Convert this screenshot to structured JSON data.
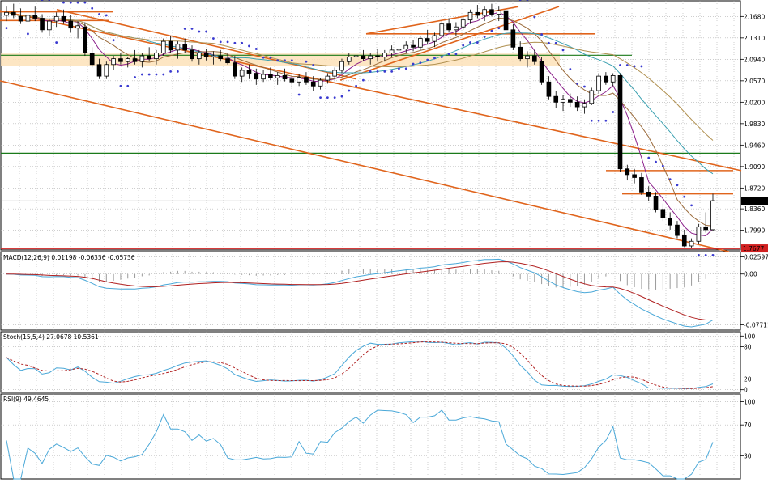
{
  "chart_data": {
    "type": "candlestick",
    "price_pane": {
      "y_ticks": [
        "2.1680",
        "2.1310",
        "2.0940",
        "2.0570",
        "2.0200",
        "1.9830",
        "1.9460",
        "1.9090",
        "1.8720",
        "1.8360",
        "1.7990"
      ],
      "y_range": [
        1.765,
        2.195
      ],
      "last_price_label": "1.8498",
      "low_price_label": "1.7677",
      "candles": [
        [
          2.17,
          2.185,
          2.16,
          2.175
        ],
        [
          2.175,
          2.19,
          2.165,
          2.17
        ],
        [
          2.168,
          2.182,
          2.155,
          2.16
        ],
        [
          2.16,
          2.175,
          2.15,
          2.17
        ],
        [
          2.17,
          2.185,
          2.16,
          2.165
        ],
        [
          2.165,
          2.172,
          2.14,
          2.145
        ],
        [
          2.145,
          2.165,
          2.135,
          2.16
        ],
        [
          2.16,
          2.175,
          2.15,
          2.168
        ],
        [
          2.168,
          2.18,
          2.155,
          2.16
        ],
        [
          2.16,
          2.17,
          2.14,
          2.148
        ],
        [
          2.148,
          2.16,
          2.13,
          2.152
        ],
        [
          2.15,
          2.158,
          2.1,
          2.105
        ],
        [
          2.105,
          2.115,
          2.08,
          2.085
        ],
        [
          2.085,
          2.095,
          2.06,
          2.065
        ],
        [
          2.065,
          2.09,
          2.06,
          2.085
        ],
        [
          2.085,
          2.1,
          2.075,
          2.095
        ],
        [
          2.095,
          2.105,
          2.085,
          2.09
        ],
        [
          2.09,
          2.098,
          2.08,
          2.095
        ],
        [
          2.095,
          2.11,
          2.085,
          2.09
        ],
        [
          2.09,
          2.105,
          2.08,
          2.1
        ],
        [
          2.1,
          2.115,
          2.09,
          2.095
        ],
        [
          2.095,
          2.11,
          2.085,
          2.105
        ],
        [
          2.105,
          2.13,
          2.1,
          2.125
        ],
        [
          2.125,
          2.135,
          2.105,
          2.11
        ],
        [
          2.11,
          2.125,
          2.095,
          2.12
        ],
        [
          2.12,
          2.13,
          2.105,
          2.11
        ],
        [
          2.11,
          2.118,
          2.09,
          2.095
        ],
        [
          2.095,
          2.11,
          2.085,
          2.105
        ],
        [
          2.105,
          2.112,
          2.092,
          2.098
        ],
        [
          2.098,
          2.108,
          2.085,
          2.1
        ],
        [
          2.1,
          2.11,
          2.09,
          2.095
        ],
        [
          2.095,
          2.105,
          2.085,
          2.088
        ],
        [
          2.088,
          2.1,
          2.06,
          2.065
        ],
        [
          2.065,
          2.08,
          2.055,
          2.075
        ],
        [
          2.075,
          2.085,
          2.06,
          2.07
        ],
        [
          2.07,
          2.078,
          2.05,
          2.06
        ],
        [
          2.06,
          2.075,
          2.055,
          2.068
        ],
        [
          2.068,
          2.08,
          2.058,
          2.062
        ],
        [
          2.062,
          2.072,
          2.05,
          2.066
        ],
        [
          2.066,
          2.078,
          2.056,
          2.06
        ],
        [
          2.06,
          2.07,
          2.045,
          2.055
        ],
        [
          2.055,
          2.068,
          2.048,
          2.063
        ],
        [
          2.063,
          2.072,
          2.05,
          2.055
        ],
        [
          2.055,
          2.065,
          2.04,
          2.048
        ],
        [
          2.048,
          2.062,
          2.042,
          2.058
        ],
        [
          2.058,
          2.07,
          2.052,
          2.065
        ],
        [
          2.065,
          2.08,
          2.06,
          2.075
        ],
        [
          2.075,
          2.095,
          2.07,
          2.09
        ],
        [
          2.09,
          2.105,
          2.085,
          2.098
        ],
        [
          2.098,
          2.108,
          2.09,
          2.1
        ],
        [
          2.1,
          2.11,
          2.092,
          2.095
        ],
        [
          2.095,
          2.105,
          2.085,
          2.1
        ],
        [
          2.1,
          2.112,
          2.09,
          2.098
        ],
        [
          2.098,
          2.11,
          2.09,
          2.105
        ],
        [
          2.105,
          2.118,
          2.098,
          2.11
        ],
        [
          2.11,
          2.12,
          2.1,
          2.112
        ],
        [
          2.112,
          2.125,
          2.105,
          2.118
        ],
        [
          2.118,
          2.128,
          2.108,
          2.115
        ],
        [
          2.115,
          2.135,
          2.11,
          2.13
        ],
        [
          2.13,
          2.145,
          2.12,
          2.125
        ],
        [
          2.125,
          2.14,
          2.115,
          2.135
        ],
        [
          2.135,
          2.16,
          2.13,
          2.155
        ],
        [
          2.155,
          2.165,
          2.14,
          2.145
        ],
        [
          2.145,
          2.158,
          2.135,
          2.15
        ],
        [
          2.15,
          2.168,
          2.145,
          2.162
        ],
        [
          2.162,
          2.18,
          2.155,
          2.175
        ],
        [
          2.175,
          2.188,
          2.165,
          2.17
        ],
        [
          2.17,
          2.185,
          2.16,
          2.18
        ],
        [
          2.18,
          2.19,
          2.168,
          2.172
        ],
        [
          2.172,
          2.185,
          2.16,
          2.178
        ],
        [
          2.178,
          2.185,
          2.14,
          2.145
        ],
        [
          2.145,
          2.155,
          2.11,
          2.115
        ],
        [
          2.115,
          2.125,
          2.09,
          2.095
        ],
        [
          2.095,
          2.108,
          2.08,
          2.1
        ],
        [
          2.1,
          2.11,
          2.085,
          2.09
        ],
        [
          2.09,
          2.098,
          2.05,
          2.055
        ],
        [
          2.055,
          2.065,
          2.025,
          2.03
        ],
        [
          2.03,
          2.04,
          2.01,
          2.02
        ],
        [
          2.02,
          2.032,
          2.005,
          2.025
        ],
        [
          2.025,
          2.035,
          2.012,
          2.02
        ],
        [
          2.02,
          2.03,
          2.005,
          2.012
        ],
        [
          2.012,
          2.025,
          2.0,
          2.018
        ],
        [
          2.018,
          2.045,
          2.015,
          2.04
        ],
        [
          2.04,
          2.07,
          2.035,
          2.065
        ],
        [
          2.065,
          2.072,
          2.05,
          2.055
        ],
        [
          2.055,
          2.07,
          2.048,
          2.066
        ],
        [
          2.066,
          2.07,
          1.9,
          1.905
        ],
        [
          1.905,
          1.912,
          1.885,
          1.895
        ],
        [
          1.895,
          1.905,
          1.88,
          1.89
        ],
        [
          1.89,
          1.898,
          1.86,
          1.865
        ],
        [
          1.865,
          1.875,
          1.85,
          1.858
        ],
        [
          1.858,
          1.865,
          1.83,
          1.835
        ],
        [
          1.835,
          1.845,
          1.815,
          1.82
        ],
        [
          1.82,
          1.83,
          1.8,
          1.808
        ],
        [
          1.808,
          1.815,
          1.785,
          1.79
        ],
        [
          1.79,
          1.8,
          1.77,
          1.772
        ],
        [
          1.772,
          1.785,
          1.768,
          1.78
        ],
        [
          1.78,
          1.81,
          1.775,
          1.805
        ],
        [
          1.805,
          1.83,
          1.795,
          1.8
        ],
        [
          1.8,
          1.862,
          1.798,
          1.85
        ]
      ],
      "colors": {
        "bull": "#ffffff",
        "bear": "#000000"
      }
    },
    "macd_pane": {
      "label": "MACD(12,26,9) 0.01198 -0.06336 -0.05736",
      "y_ticks": [
        "0.02597",
        "0.00",
        "-0.07711"
      ]
    },
    "stoch_pane": {
      "label": "Stoch(15,5,4) 27.0678 10.5361",
      "y_ticks": [
        "100",
        "80",
        "20",
        "0"
      ]
    },
    "rsi_pane": {
      "label": "RSI(9) 49.4645",
      "y_ticks": [
        "100",
        "70",
        "30"
      ]
    },
    "grid": true
  }
}
